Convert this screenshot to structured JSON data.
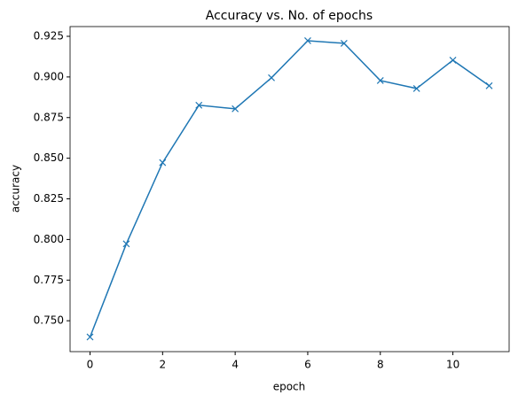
{
  "chart_data": {
    "type": "line",
    "title": "Accuracy vs. No. of epochs",
    "x_label": "epoch",
    "y_label": "accuracy",
    "x": [
      0,
      1,
      2,
      3,
      4,
      5,
      6,
      7,
      8,
      9,
      10,
      11
    ],
    "values": [
      0.74,
      0.7973,
      0.8473,
      0.8826,
      0.8804,
      0.8995,
      0.9223,
      0.9207,
      0.8978,
      0.8929,
      0.9103,
      0.8946
    ],
    "color": "#1f77b4",
    "marker": "x",
    "xlim": [
      -0.55,
      11.55
    ],
    "xticks": [
      0,
      2,
      4,
      6,
      8,
      10
    ],
    "ylim": [
      0.731,
      0.931
    ],
    "yticks": [
      {
        "value": 0.75,
        "label": "0.750"
      },
      {
        "value": 0.775,
        "label": "0.775"
      },
      {
        "value": 0.8,
        "label": "0.800"
      },
      {
        "value": 0.825,
        "label": "0.825"
      },
      {
        "value": 0.85,
        "label": "0.850"
      },
      {
        "value": 0.875,
        "label": "0.875"
      },
      {
        "value": 0.9,
        "label": "0.900"
      },
      {
        "value": 0.925,
        "label": "0.925"
      }
    ]
  }
}
